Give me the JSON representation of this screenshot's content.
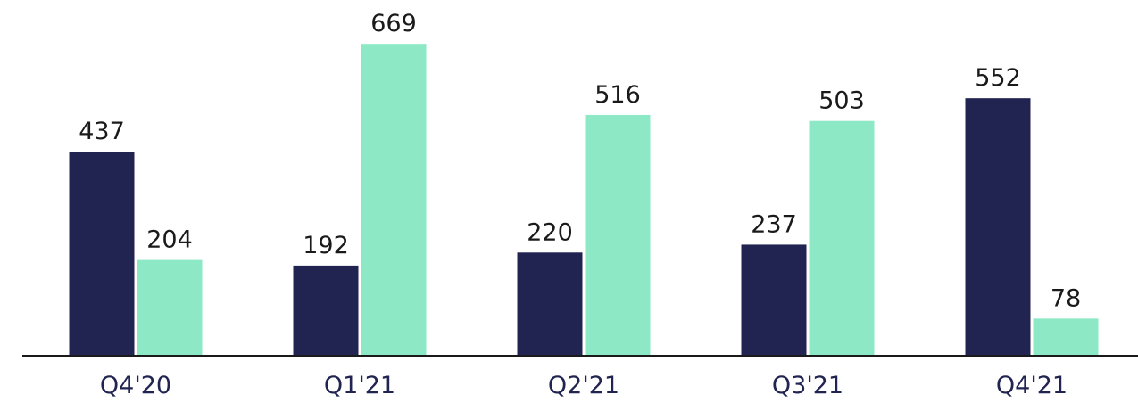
{
  "chart_data": {
    "type": "bar",
    "categories": [
      "Q4'20",
      "Q1'21",
      "Q2'21",
      "Q3'21",
      "Q4'21"
    ],
    "series": [
      {
        "color": "#212351",
        "values": [
          437,
          192,
          220,
          237,
          552
        ]
      },
      {
        "color": "#8de8c6",
        "values": [
          204,
          669,
          516,
          503,
          78
        ]
      }
    ],
    "ylim": [
      0,
      700
    ]
  }
}
